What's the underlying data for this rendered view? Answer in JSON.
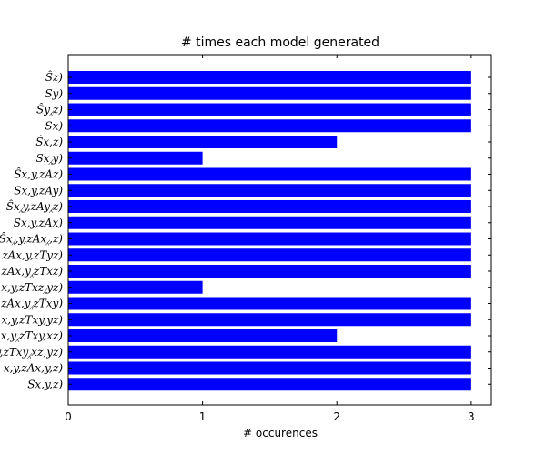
{
  "chart_data": {
    "type": "bar",
    "orientation": "horizontal",
    "title": "# times each model generated",
    "xlabel": "# occurences",
    "ylabel": "",
    "xlim": [
      0,
      3.15
    ],
    "xticks": [
      0,
      1,
      2,
      3
    ],
    "grid": false,
    "legend": "none",
    "bar_color": "#0000ff",
    "categories": [
      "Ŝz)",
      "Sy)",
      "Ŝy⁁z)",
      "Sx)",
      "Ŝx,z)",
      "Sx⁁y)",
      "Ŝx,y,zAz)",
      "Sx,y,zAy)",
      "Ŝx⁁y,zAy⁁z)",
      "Sx,y,zAx)",
      "Ŝx⁁,y,zAx⁁,z)",
      "zAx,y,zTyz)",
      "zAx,y⁁zTxz)",
      "x,y,zTxz⁁yz)",
      "zAx,y⁁zTxy)",
      "x,y,zTxy,yz)",
      "x,y⁁zTxy,xz)",
      "y,zTxy⁁xz,yz)",
      "x,y,zAx,y,z)",
      "Sx,y,z)"
    ],
    "values": [
      3,
      3,
      3,
      3,
      2,
      1,
      3,
      3,
      3,
      3,
      3,
      3,
      3,
      1,
      3,
      3,
      2,
      3,
      3,
      3
    ]
  }
}
